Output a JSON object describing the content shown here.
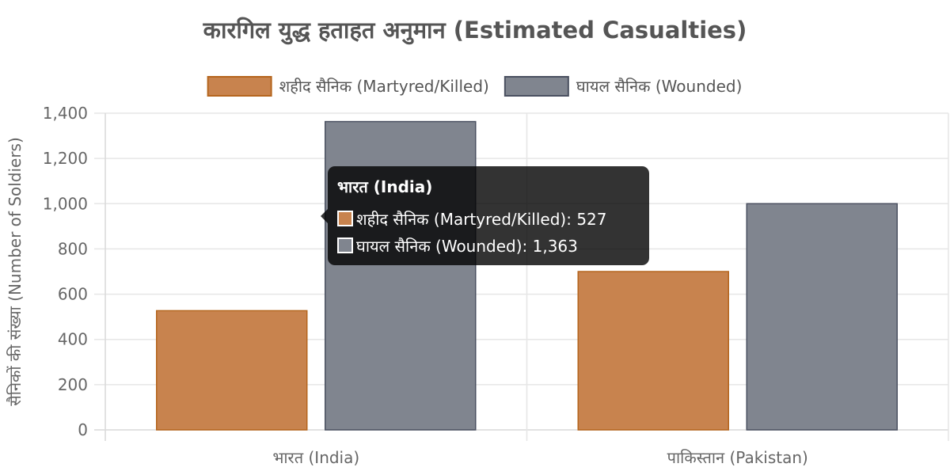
{
  "chart_data": {
    "type": "bar",
    "title": "कारगिल युद्ध हताहत अनुमान (Estimated Casualties)",
    "categories": [
      "भारत (India)",
      "पाकिस्तान (Pakistan)"
    ],
    "series": [
      {
        "name": "शहीद सैनिक (Martyred/Killed)",
        "values": [
          527,
          700
        ],
        "color": "#c8834e",
        "border_color": "#b5651d"
      },
      {
        "name": "घायल सैनिक (Wounded)",
        "values": [
          1363,
          1000
        ],
        "color": "#80858f",
        "border_color": "#4a5060"
      }
    ],
    "ylabel": "सैनिकों की संख्या (Number of Soldiers)",
    "xlabel": "",
    "ylim": [
      0,
      1400
    ],
    "yticks": [
      "0",
      "200",
      "400",
      "600",
      "800",
      "1,000",
      "1,200",
      "1,400"
    ],
    "grid": true,
    "legend_position": "top"
  },
  "tooltip": {
    "title": "भारत (India)",
    "items": [
      {
        "label": "शहीद सैनिक (Martyred/Killed): 527",
        "color": "#c8834e"
      },
      {
        "label": "घायल सैनिक (Wounded): 1,363",
        "color": "#80858f"
      }
    ]
  }
}
